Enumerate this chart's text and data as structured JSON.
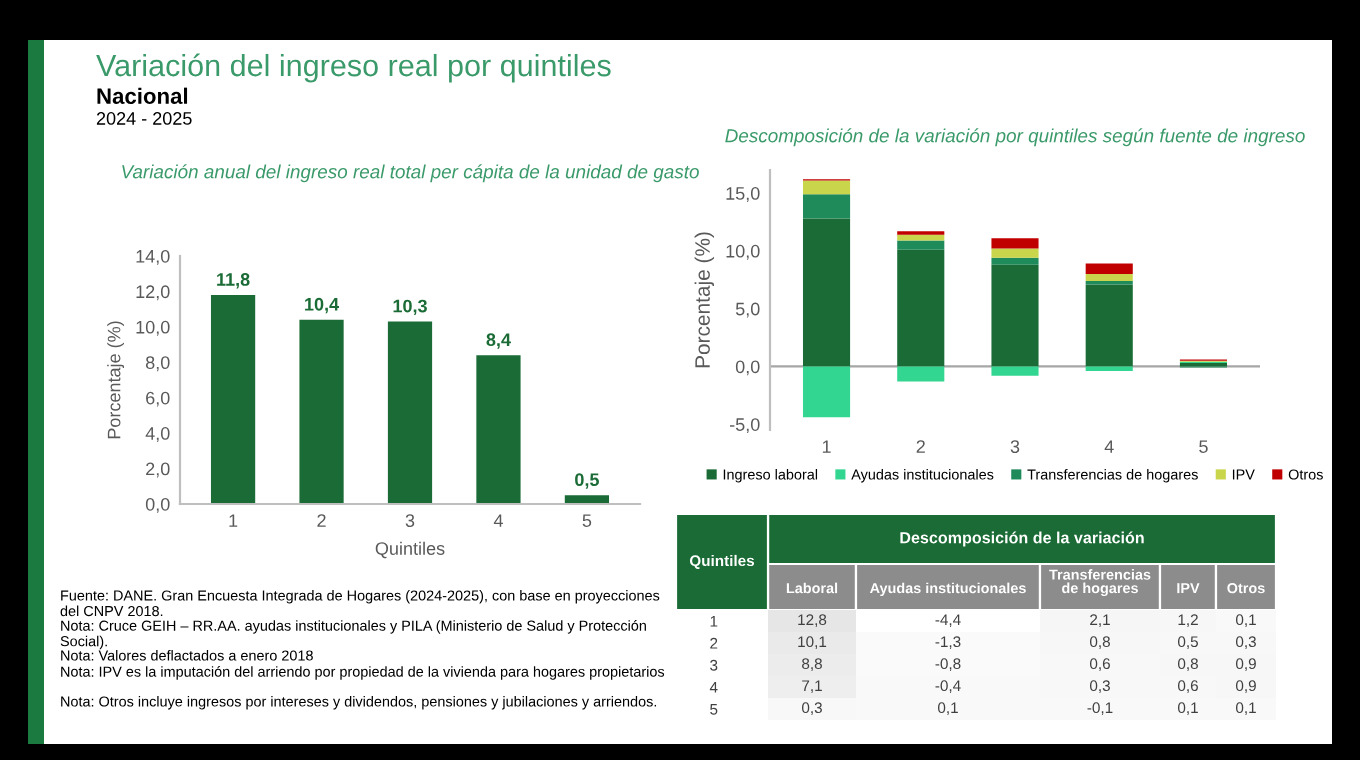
{
  "chart_data": [
    {
      "type": "other",
      "title": "Variación del ingreso real por quintiles",
      "subtitle": "Nacional",
      "annotations": [
        "2024 - 2025",
        "Fuente: DANE. Gran Encuesta Integrada de Hogares (2024-2025), con base en proyecciones del CNPV 2018.",
        "Nota: Cruce GEIH – RR.AA. ayudas institucionales y PILA (Ministerio de Salud y Protección Social).",
        "Nota: Valores deflactados a enero 2018",
        "Nota: IPV es la imputación del arriendo por propiedad de la vivienda para hogares propietarios",
        "Nota: Otros incluye ingresos por intereses y dividendos, pensiones y jubilaciones y arriendos."
      ]
    },
    {
      "type": "bar",
      "title": "Variación anual del ingreso real total per cápita de la unidad de gasto",
      "xlabel": "Quintiles",
      "ylabel": "Porcentaje (%)",
      "categories": [
        "1",
        "2",
        "3",
        "4",
        "5"
      ],
      "values": [
        11.8,
        10.4,
        10.3,
        8.4,
        0.5
      ],
      "value_labels": [
        "11,8",
        "10,4",
        "10,3",
        "8,4",
        "0,5"
      ],
      "color": "#1a6b35",
      "ylim": [
        0,
        14
      ],
      "yticks": [
        {
          "value": 0,
          "label": "0,0"
        },
        {
          "value": 2,
          "label": "2,0"
        },
        {
          "value": 4,
          "label": "4,0"
        },
        {
          "value": 6,
          "label": "6,0"
        },
        {
          "value": 8,
          "label": "8,0"
        },
        {
          "value": 10,
          "label": "10,0"
        },
        {
          "value": 12,
          "label": "12,0"
        },
        {
          "value": 14,
          "label": "14,0"
        }
      ]
    },
    {
      "type": "bar",
      "stacked": true,
      "title": "Descomposición de la variación por quintiles según fuente de ingreso",
      "ylabel": "Porcentaje (%)",
      "categories": [
        "1",
        "2",
        "3",
        "4",
        "5"
      ],
      "ylim": [
        -5.5,
        17
      ],
      "yticks": [
        {
          "value": -5,
          "label": "-5,0"
        },
        {
          "value": 0,
          "label": "0,0"
        },
        {
          "value": 5,
          "label": "5,0"
        },
        {
          "value": 10,
          "label": "10,0"
        },
        {
          "value": 15,
          "label": "15,0"
        }
      ],
      "legend": "bottom",
      "ref_lines": [
        {
          "axis": "y",
          "value": 0,
          "color": "#a6a6a6"
        }
      ],
      "series": [
        {
          "name": "Ingreso laboral",
          "color": "#1a6b35",
          "values": [
            12.8,
            10.1,
            8.8,
            7.1,
            0.3
          ]
        },
        {
          "name": "Ayudas institucionales",
          "color": "#33d690",
          "values": [
            -4.4,
            -1.3,
            -0.8,
            -0.4,
            0.1
          ]
        },
        {
          "name": "Transferencias de hogares",
          "color": "#1f8a5a",
          "values": [
            2.1,
            0.8,
            0.6,
            0.3,
            -0.1
          ]
        },
        {
          "name": "IPV",
          "color": "#c9d54a",
          "values": [
            1.2,
            0.5,
            0.8,
            0.6,
            0.1
          ]
        },
        {
          "name": "Otros",
          "color": "#c00000",
          "values": [
            0.1,
            0.3,
            0.9,
            0.9,
            0.1
          ]
        }
      ]
    },
    {
      "type": "heatmap",
      "title": "Descomposición de la variación",
      "ylabel": "Quintiles",
      "categories": [
        "Laboral",
        "Ayudas institucionales",
        "Transferencias de hogares",
        "IPV",
        "Otros"
      ],
      "y_categories": [
        "1",
        "2",
        "3",
        "4",
        "5"
      ],
      "cells": [
        [
          12.8,
          -4.4,
          2.1,
          1.2,
          0.1
        ],
        [
          10.1,
          -1.3,
          0.8,
          0.5,
          0.3
        ],
        [
          8.8,
          -0.8,
          0.6,
          0.8,
          0.9
        ],
        [
          7.1,
          -0.4,
          0.3,
          0.6,
          0.9
        ],
        [
          0.3,
          0.1,
          -0.1,
          0.1,
          0.1
        ]
      ],
      "cell_labels": [
        [
          "12,8",
          "-4,4",
          "2,1",
          "1,2",
          "0,1"
        ],
        [
          "10,1",
          "-1,3",
          "0,8",
          "0,5",
          "0,3"
        ],
        [
          "8,8",
          "-0,8",
          "0,6",
          "0,8",
          "0,9"
        ],
        [
          "7,1",
          "-0,4",
          "0,3",
          "0,6",
          "0,9"
        ],
        [
          "0,3",
          "0,1",
          "-0,1",
          "0,1",
          "0,1"
        ]
      ]
    }
  ]
}
